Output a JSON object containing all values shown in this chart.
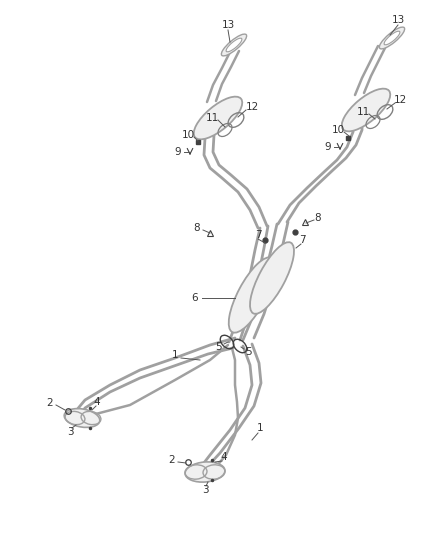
{
  "bg_color": "#ffffff",
  "line_color": "#a0a0a0",
  "dark_color": "#404040",
  "mid_color": "#808080",
  "fig_width": 4.38,
  "fig_height": 5.33,
  "dpi": 100
}
